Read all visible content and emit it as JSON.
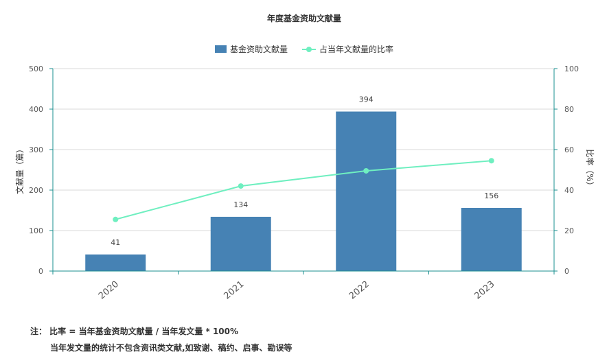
{
  "chart_data": {
    "type": "bar",
    "title": "年度基金资助文献量",
    "categories": [
      "2020",
      "2021",
      "2022",
      "2023"
    ],
    "series": [
      {
        "name": "基金资助文献量",
        "type": "bar",
        "axis": "left",
        "values": [
          41,
          134,
          394,
          156
        ],
        "color": "#4682b4"
      },
      {
        "name": "占当年文献量的比率",
        "type": "line",
        "axis": "right",
        "values": [
          25.5,
          42.0,
          49.5,
          54.5
        ],
        "color": "#6fefc0"
      }
    ],
    "ylabel": "文献量（篇）",
    "ylabel_right": "比率（%）",
    "ylim": [
      0,
      500
    ],
    "ylim_right": [
      0,
      100
    ],
    "yticks": [
      0,
      100,
      200,
      300,
      400,
      500
    ],
    "yticks_right": [
      0,
      20,
      40,
      60,
      80,
      100
    ],
    "grid": true,
    "legend": "top-center",
    "axis_color": "#1a8f8f"
  },
  "notes": {
    "line1": "注： 比率 = 当年基金资助文献量 / 当年发文量 * 100%",
    "line2": "当年发文量的统计不包含资讯类文献,如致谢、稿约、启事、勘误等"
  }
}
